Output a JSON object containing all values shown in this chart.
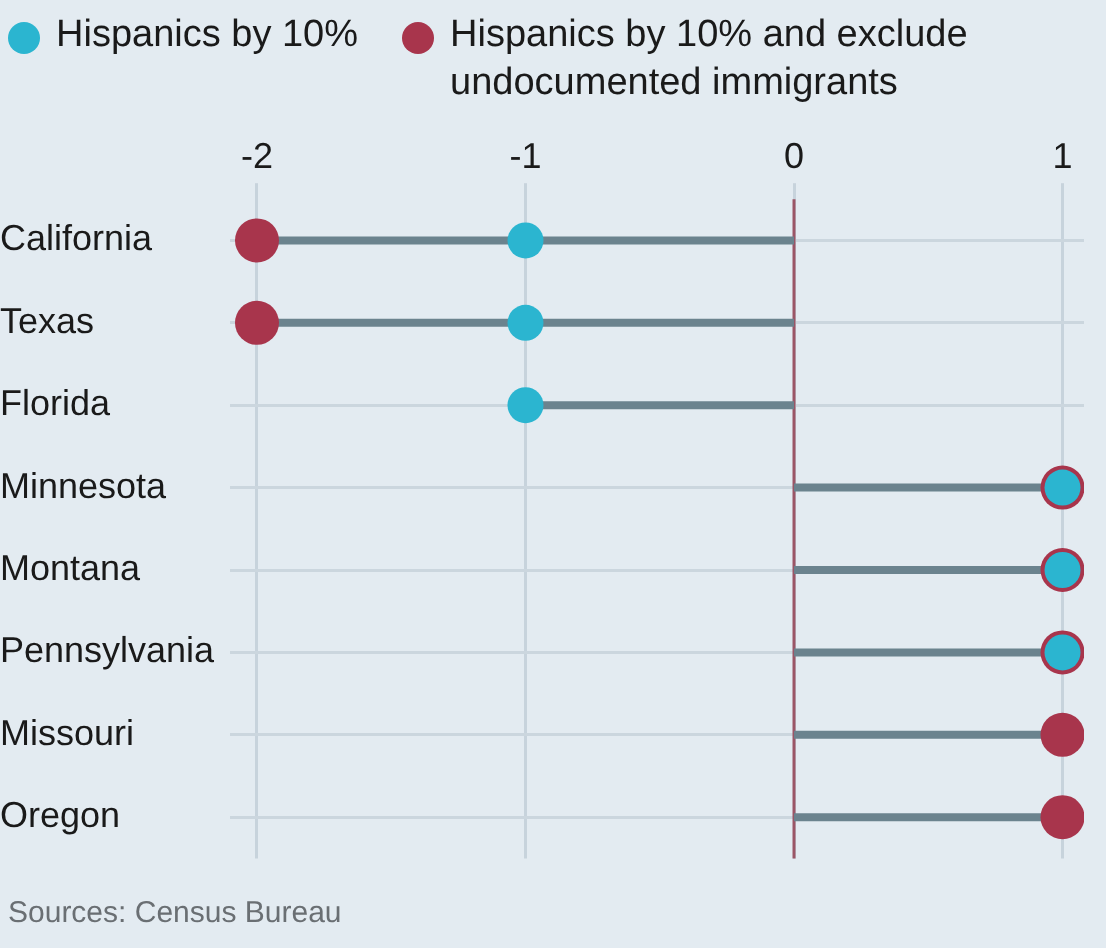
{
  "chart_data": {
    "type": "lollipop",
    "orientation": "horizontal",
    "categories": [
      "California",
      "Texas",
      "Florida",
      "Minnesota",
      "Montana",
      "Pennsylvania",
      "Missouri",
      "Oregon"
    ],
    "series": [
      {
        "name": "Hispanics by 10%",
        "color": "#2bb5d0",
        "values": [
          -1,
          -1,
          -1,
          1,
          1,
          1,
          null,
          null
        ]
      },
      {
        "name": "Hispanics by 10% and exclude undocumented immigrants",
        "color": "#a8354c",
        "values": [
          -2,
          -2,
          null,
          1,
          1,
          1,
          1,
          1
        ]
      }
    ],
    "xlim": [
      -2.1,
      1.08
    ],
    "xticks": [
      -2,
      -1,
      0,
      1
    ],
    "ref_lines": [
      {
        "axis": "x",
        "value": 0,
        "color": "#9b5566"
      }
    ],
    "grid": true,
    "legend": "top left",
    "marker": "circle",
    "annotations": [
      "Sources: Census Bureau"
    ]
  }
}
